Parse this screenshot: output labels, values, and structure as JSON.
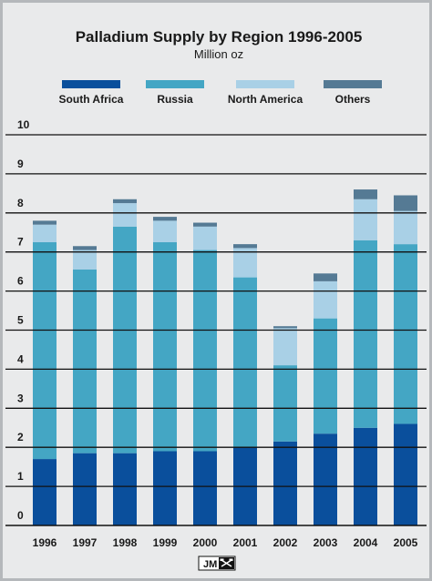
{
  "chart_data": {
    "type": "bar",
    "stacked": true,
    "title": "Palladium Supply by Region 1996-2005",
    "subtitle": "Million oz",
    "categories": [
      "1996",
      "1997",
      "1998",
      "1999",
      "2000",
      "2001",
      "2002",
      "2003",
      "2004",
      "2005"
    ],
    "series": [
      {
        "name": "South Africa",
        "color": "#0a4f9c",
        "values": [
          1.7,
          1.85,
          1.85,
          1.9,
          1.9,
          2.0,
          2.15,
          2.35,
          2.5,
          2.6
        ]
      },
      {
        "name": "Russia",
        "color": "#44a6c4",
        "values": [
          5.55,
          4.7,
          5.8,
          5.35,
          5.15,
          4.35,
          1.95,
          2.95,
          4.8,
          4.6
        ]
      },
      {
        "name": "North America",
        "color": "#a9d0e6",
        "values": [
          0.45,
          0.5,
          0.6,
          0.55,
          0.6,
          0.75,
          0.95,
          0.95,
          1.05,
          0.85
        ]
      },
      {
        "name": "Others",
        "color": "#557a94",
        "values": [
          0.1,
          0.1,
          0.1,
          0.1,
          0.1,
          0.1,
          0.05,
          0.2,
          0.25,
          0.4
        ]
      }
    ],
    "y_ticks": [
      "0",
      "1",
      "2",
      "3",
      "4",
      "5",
      "6",
      "7",
      "8",
      "9",
      "10"
    ],
    "ylim": [
      0,
      10
    ],
    "grid": true,
    "legend_position": "top"
  },
  "logo": {
    "text": "JM",
    "icon": "crossed-hammers-icon"
  }
}
